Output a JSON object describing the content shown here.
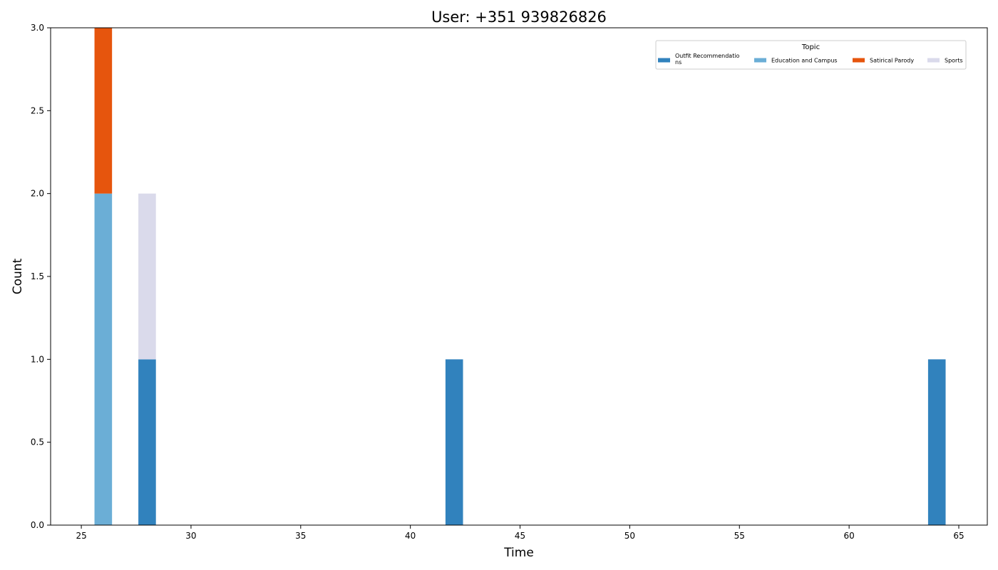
{
  "chart_data": {
    "type": "bar",
    "stacked": true,
    "title": "User: +351 939826826",
    "xlabel": "Time",
    "ylabel": "Count",
    "xlim": [
      23.6,
      66.3
    ],
    "ylim": [
      0,
      3
    ],
    "xticks": [
      25,
      30,
      35,
      40,
      45,
      50,
      55,
      60,
      65
    ],
    "xtick_labels": [
      "25",
      "30",
      "35",
      "40",
      "45",
      "50",
      "55",
      "60",
      "65"
    ],
    "yticks": [
      0,
      0.5,
      1,
      1.5,
      2,
      2.5,
      3
    ],
    "ytick_labels": [
      "0.0",
      "0.5",
      "1.0",
      "1.5",
      "2.0",
      "2.5",
      "3.0"
    ],
    "bar_width": 0.8,
    "x": [
      26,
      28,
      42,
      64
    ],
    "series": [
      {
        "name": "Outfit Recommendatio\nns",
        "color": "#3182bd",
        "values": [
          0,
          1,
          1,
          1
        ]
      },
      {
        "name": "Education and Campus",
        "color": "#6baed6",
        "values": [
          2,
          0,
          0,
          0
        ]
      },
      {
        "name": "Satirical Parody",
        "color": "#e6550d",
        "values": [
          1,
          0,
          0,
          0
        ]
      },
      {
        "name": "Sports",
        "color": "#dadaeb",
        "values": [
          0,
          1,
          0,
          0
        ]
      }
    ],
    "legend": {
      "title": "Topic",
      "position": "top-right",
      "columns": 4
    },
    "grid": false
  }
}
